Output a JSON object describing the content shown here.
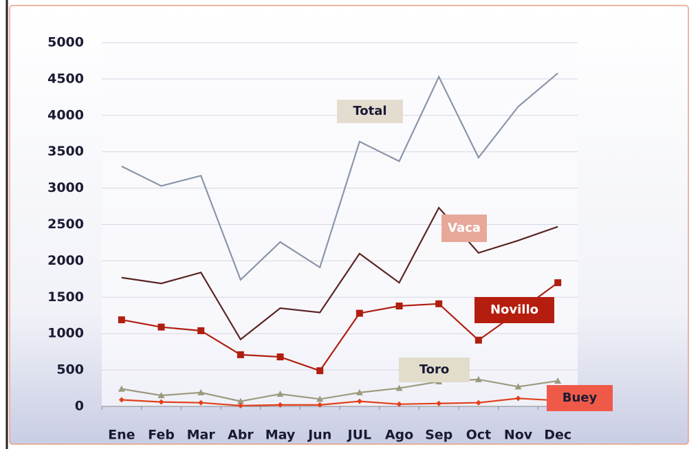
{
  "chart_data": {
    "type": "line",
    "categories": [
      "Ene",
      "Feb",
      "Mar",
      "Abr",
      "May",
      "Jun",
      "JUL",
      "Ago",
      "Sep",
      "Oct",
      "Nov",
      "Dec"
    ],
    "series": [
      {
        "name": "Total",
        "color": "#8a95a8",
        "marker": "none",
        "values": [
          3300,
          3030,
          3170,
          1740,
          2260,
          1910,
          3640,
          3370,
          4530,
          3420,
          4120,
          4580
        ]
      },
      {
        "name": "Vaca",
        "color": "#5a2424",
        "marker": "none",
        "values": [
          1770,
          1690,
          1840,
          920,
          1350,
          1290,
          2100,
          1700,
          2730,
          2110,
          2280,
          2470
        ]
      },
      {
        "name": "Novillo",
        "color": "#b01e10",
        "marker": "square",
        "values": [
          1190,
          1090,
          1040,
          710,
          680,
          490,
          1280,
          1380,
          1410,
          910,
          1300,
          1700
        ]
      },
      {
        "name": "Toro",
        "color": "#9c9a7e",
        "marker": "triangle",
        "values": [
          240,
          150,
          190,
          70,
          170,
          100,
          190,
          250,
          340,
          370,
          270,
          350
        ]
      },
      {
        "name": "Buey",
        "color": "#e0401c",
        "marker": "diamond",
        "values": [
          90,
          60,
          50,
          10,
          20,
          20,
          70,
          30,
          40,
          50,
          110,
          80
        ]
      }
    ],
    "ylim": [
      0,
      5000
    ],
    "yticks": [
      0,
      500,
      1000,
      1500,
      2000,
      2500,
      3000,
      3500,
      4000,
      4500,
      5000
    ],
    "grid": true
  }
}
